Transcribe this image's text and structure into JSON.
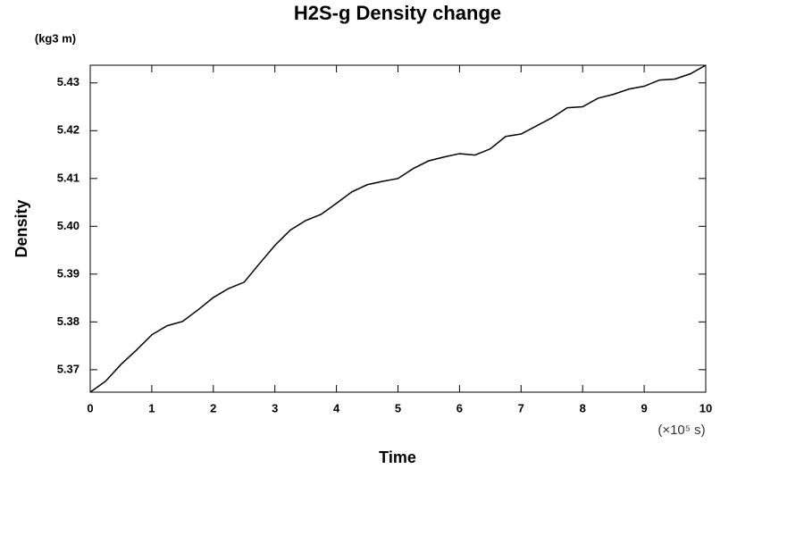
{
  "chart_data": {
    "type": "line",
    "title": "H2S-g Density change",
    "y_unit": "(kg3 m)",
    "y_label": "Density",
    "x_label": "Time",
    "x_unit": "(×10⁵ s)",
    "x": [
      0,
      0.25,
      0.5,
      0.75,
      1,
      1.25,
      1.5,
      1.75,
      2,
      2.25,
      2.5,
      2.75,
      3,
      3.25,
      3.5,
      3.75,
      4,
      4.25,
      4.5,
      4.75,
      5,
      5.25,
      5.5,
      5.75,
      6,
      6.25,
      6.5,
      6.75,
      7,
      7.25,
      7.5,
      7.75,
      8,
      8.25,
      8.5,
      8.75,
      9,
      9.25,
      9.5,
      9.75,
      10
    ],
    "series": [
      {
        "color": "#000000",
        "values": [
          5.3653,
          5.3676,
          5.3711,
          5.3741,
          5.3773,
          5.3792,
          5.3801,
          5.3825,
          5.3851,
          5.387,
          5.3883,
          5.3922,
          5.396,
          5.3992,
          5.4012,
          5.4025,
          5.4048,
          5.4072,
          5.4087,
          5.4094,
          5.41,
          5.4121,
          5.4137,
          5.4145,
          5.4152,
          5.4149,
          5.4162,
          5.4188,
          5.4193,
          5.421,
          5.4227,
          5.4248,
          5.425,
          5.4268,
          5.4276,
          5.4287,
          5.4293,
          5.4306,
          5.4308,
          5.4319,
          5.4337
        ]
      }
    ],
    "xlim": [
      0,
      10
    ],
    "xticks": [
      0,
      1,
      2,
      3,
      4,
      5,
      6,
      7,
      8,
      9,
      10
    ],
    "ylim": [
      5.3653,
      5.4337
    ],
    "yticks": [
      5.37,
      5.38,
      5.39,
      {
        "value": 5.4,
        "label": "5.40"
      },
      5.41,
      5.42,
      5.43
    ]
  }
}
